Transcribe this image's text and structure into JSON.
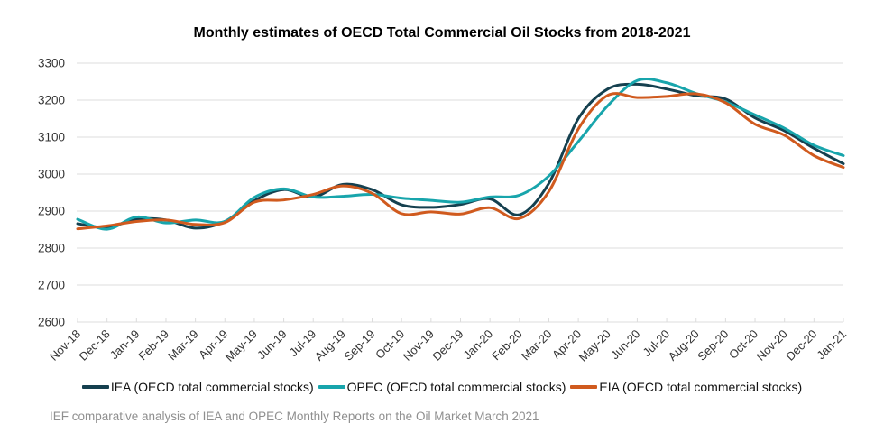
{
  "page": {
    "title": "Monthly estimates of OECD Total Commercial Oil Stocks from 2018-2021",
    "source_note": "IEF comparative analysis of IEA and OPEC Monthly Reports on the Oil Market March 2021"
  },
  "chart_data": {
    "type": "line",
    "title": "Monthly estimates of OECD Total Commercial Oil Stocks from 2018-2021",
    "xlabel": "",
    "ylabel": "",
    "x_categories": [
      "Nov-18",
      "Dec-18",
      "Jan-19",
      "Feb-19",
      "Mar-19",
      "Apr-19",
      "May-19",
      "Jun-19",
      "Jul-19",
      "Aug-19",
      "Sep-19",
      "Oct-19",
      "Nov-19",
      "Dec-19",
      "Jan-20",
      "Feb-20",
      "Mar-20",
      "Apr-20",
      "May-20",
      "Jun-20",
      "Jul-20",
      "Aug-20",
      "Sep-20",
      "Oct-20",
      "Nov-20",
      "Dec-20",
      "Jan-21"
    ],
    "y_ticks": [
      3300,
      3200,
      3100,
      3000,
      2900,
      2800,
      2700,
      2600
    ],
    "ylim": [
      2600,
      3300
    ],
    "grid": "horizontal",
    "gridline_color": "#dcdcdc",
    "axis_text_color": "#333333",
    "line_style": "smooth",
    "legend_position": "bottom",
    "series": [
      {
        "name": "IEA",
        "label": "IEA (OECD total commercial stocks)",
        "color": "#15404f",
        "values": [
          2866,
          2856,
          2878,
          2876,
          2854,
          2872,
          2928,
          2958,
          2938,
          2972,
          2958,
          2917,
          2910,
          2918,
          2933,
          2890,
          2975,
          3150,
          3230,
          3243,
          3230,
          3212,
          3203,
          3152,
          3117,
          3070,
          3028
        ]
      },
      {
        "name": "OPEC",
        "label": "OPEC (OECD total commercial stocks)",
        "color": "#18a5ac",
        "values": [
          2878,
          2851,
          2884,
          2868,
          2876,
          2872,
          2937,
          2960,
          2938,
          2940,
          2945,
          2935,
          2929,
          2924,
          2938,
          2943,
          2995,
          3088,
          3185,
          3253,
          3247,
          3218,
          3195,
          3160,
          3124,
          3078,
          3050
        ]
      },
      {
        "name": "EIA",
        "label": "EIA (OECD total commercial stocks)",
        "color": "#d05a1e",
        "values": [
          2852,
          2860,
          2872,
          2876,
          2864,
          2869,
          2924,
          2930,
          2945,
          2968,
          2948,
          2893,
          2898,
          2892,
          2909,
          2880,
          2953,
          3122,
          3213,
          3207,
          3210,
          3217,
          3193,
          3135,
          3105,
          3050,
          3018
        ]
      }
    ]
  }
}
